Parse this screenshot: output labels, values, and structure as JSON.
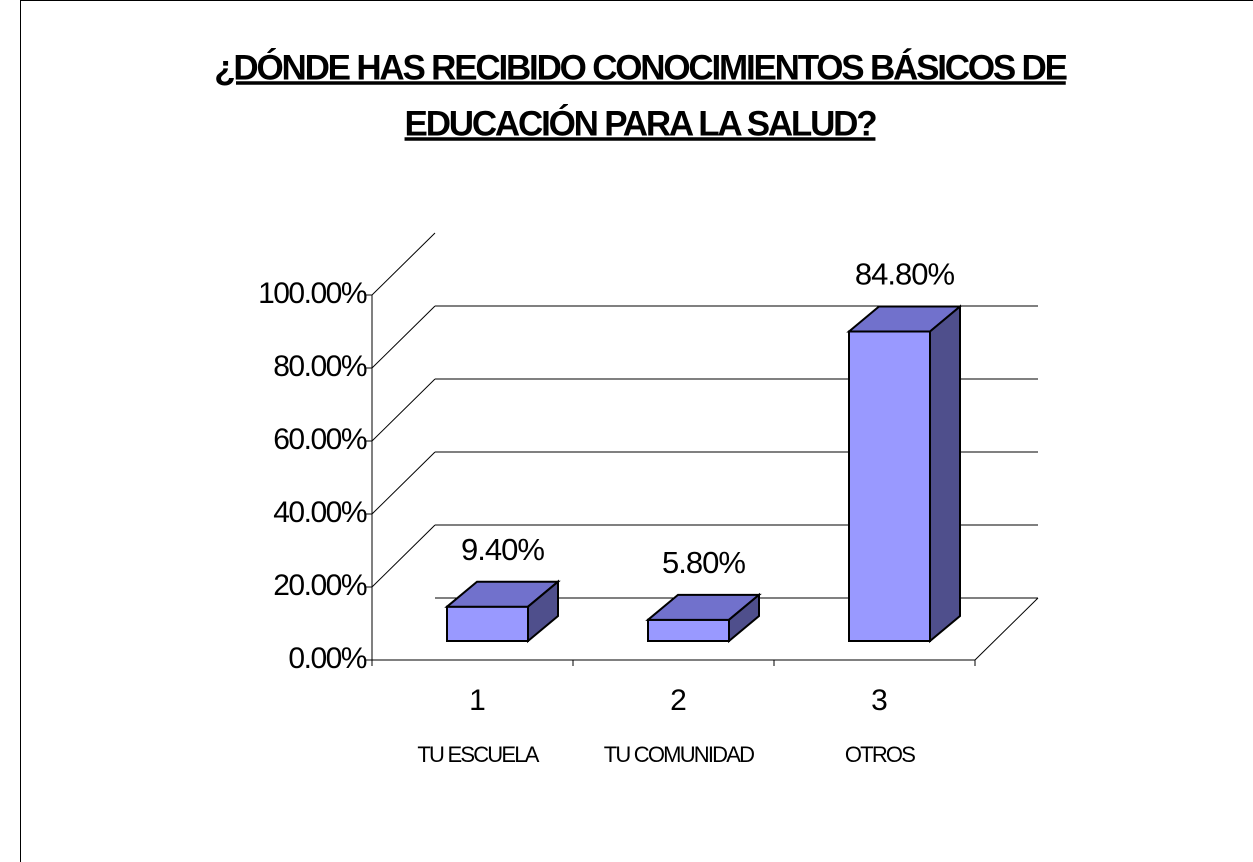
{
  "chart_data": {
    "type": "bar3d",
    "title": [
      "¿DÓNDE HAS RECIBIDO CONOCIMIENTOS BÁSICOS DE",
      "EDUCACIÓN PARA LA SALUD?"
    ],
    "categories": [
      "1",
      "2",
      "3"
    ],
    "category_labels": [
      "TU ESCUELA",
      "TU COMUNIDAD",
      "OTROS"
    ],
    "values": [
      9.4,
      5.8,
      84.8
    ],
    "value_labels": [
      "9.40%",
      "5.80%",
      "84.80%"
    ],
    "ylim": [
      0,
      100
    ],
    "yticks": [
      {
        "value": 0,
        "label": "0.00%"
      },
      {
        "value": 20,
        "label": "20.00%"
      },
      {
        "value": 40,
        "label": "40.00%"
      },
      {
        "value": 60,
        "label": "60.00%"
      },
      {
        "value": 80,
        "label": "80.00%"
      },
      {
        "value": 100,
        "label": "100.00%"
      }
    ],
    "colors": {
      "front": "#9999ff",
      "top": "#7171cc",
      "side": "#4f4f8c"
    },
    "grid": true
  }
}
